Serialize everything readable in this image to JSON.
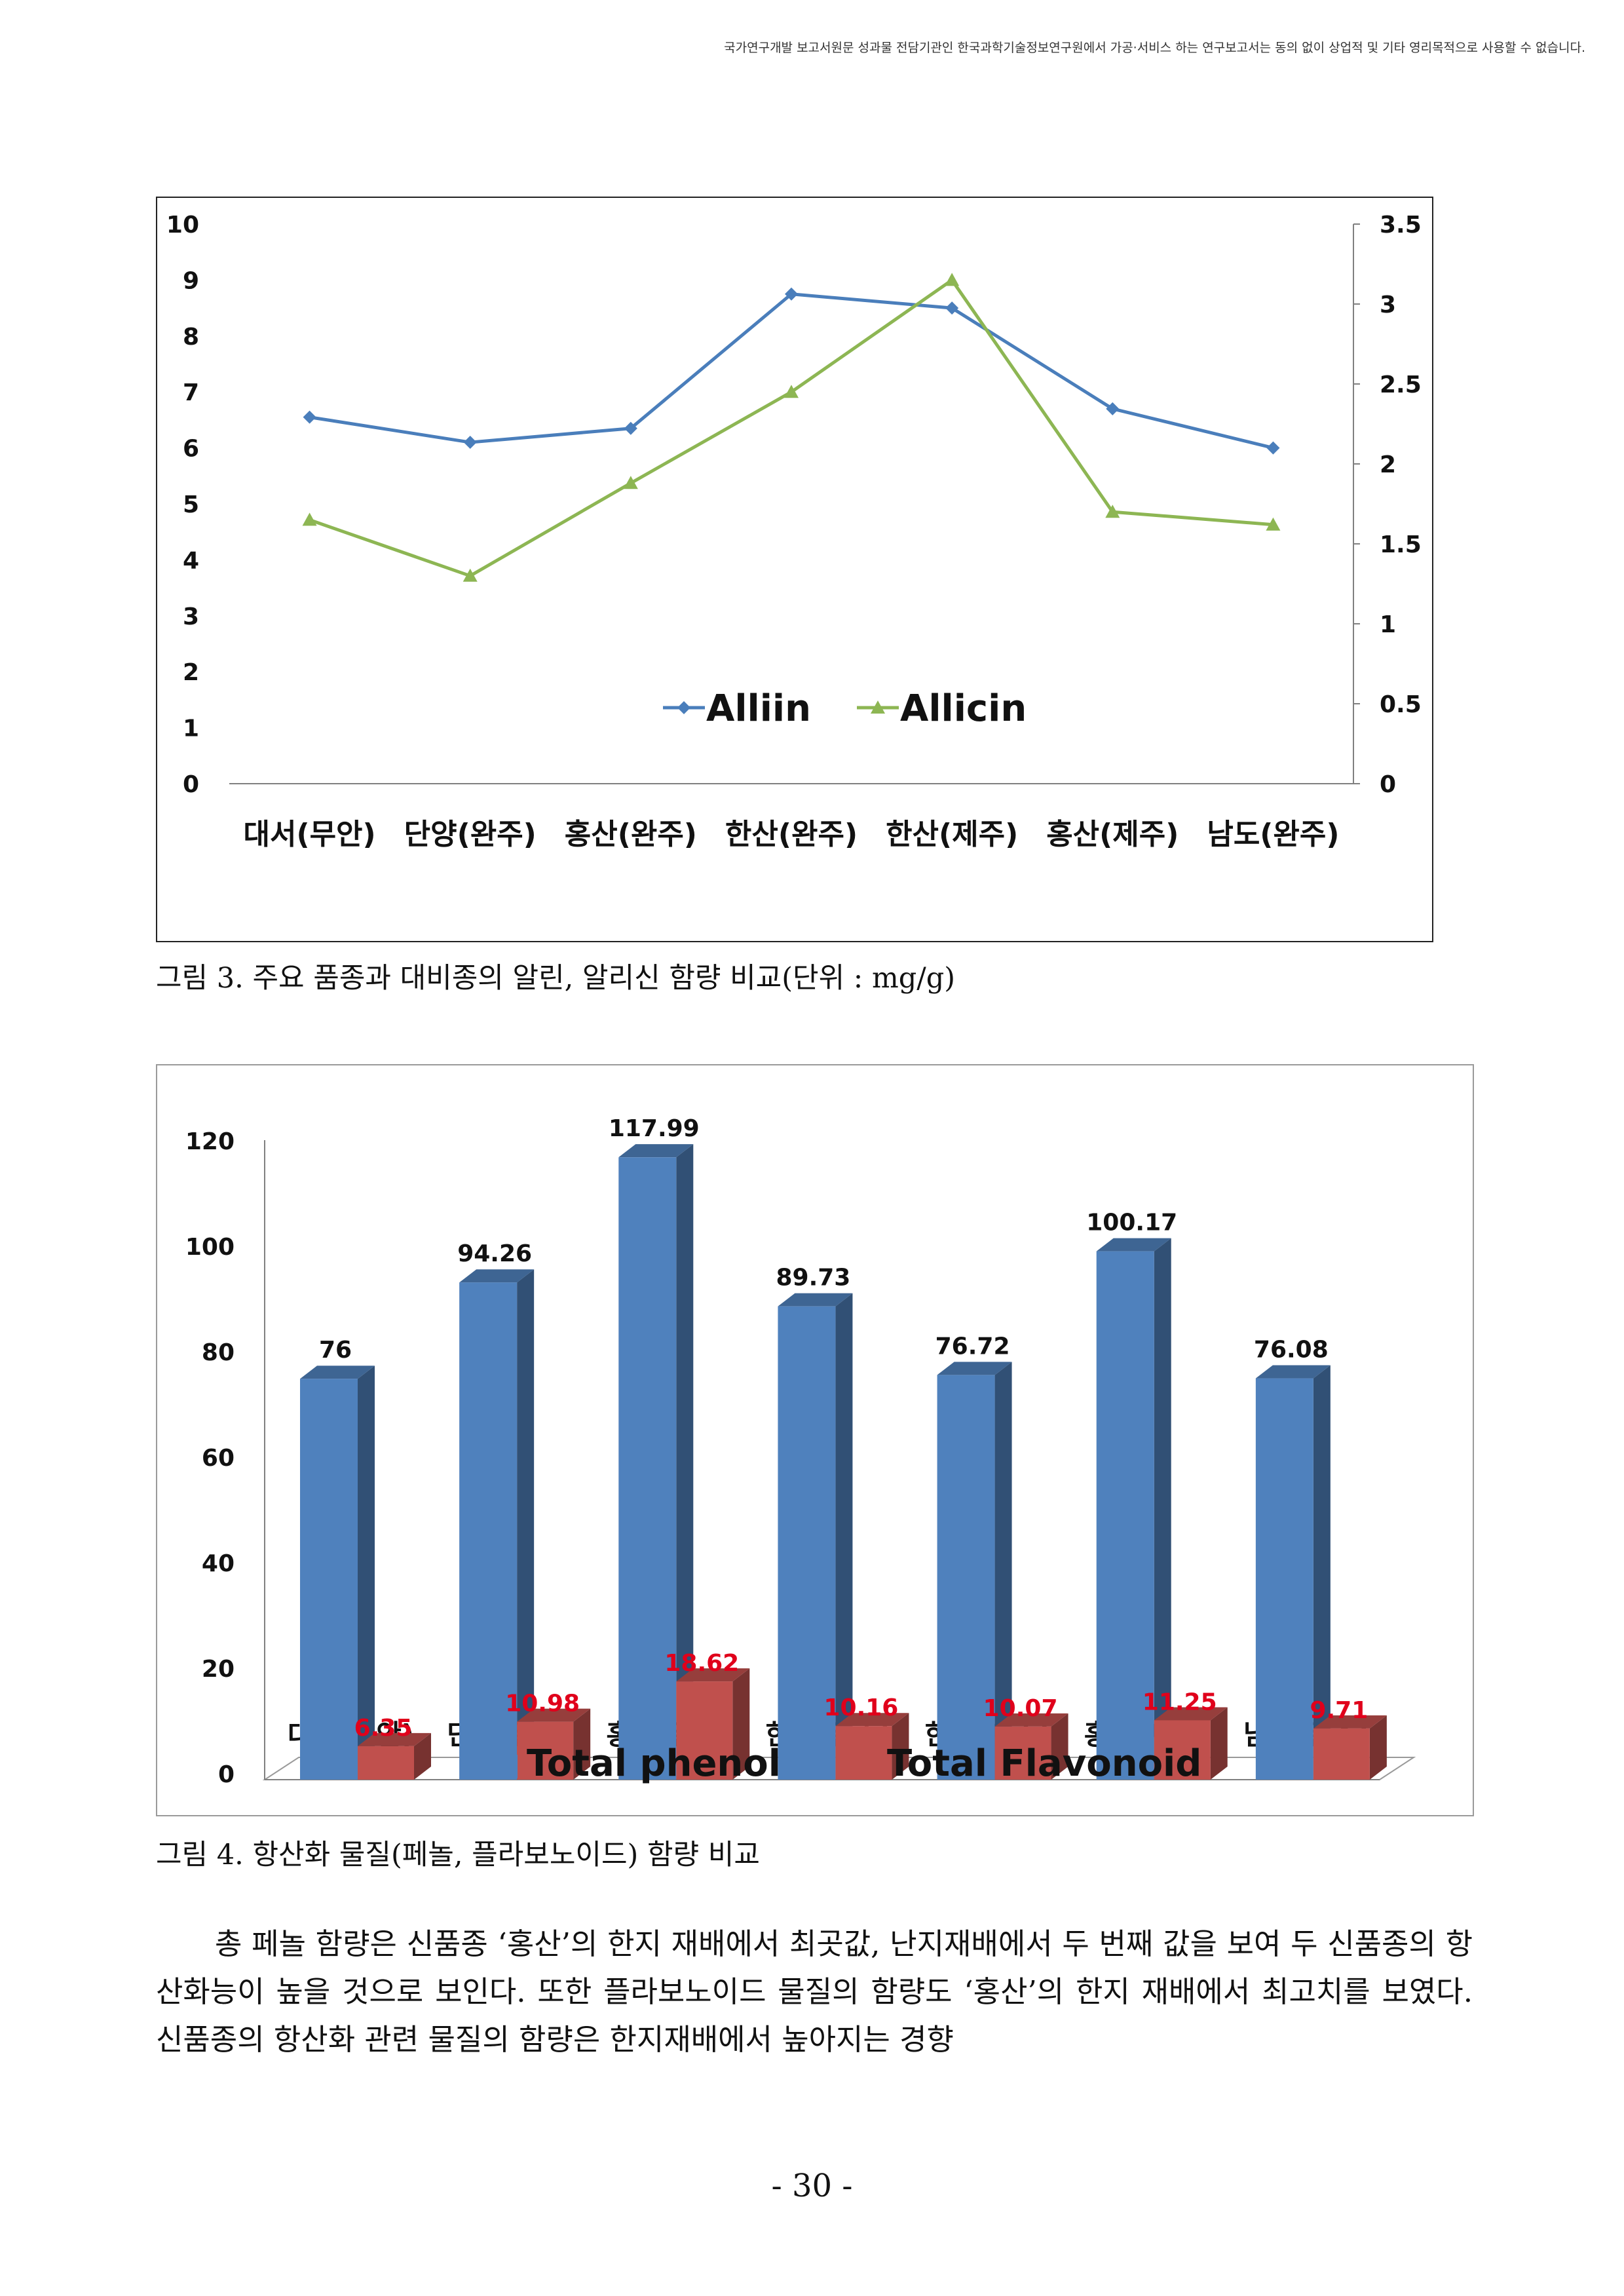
{
  "header": {
    "note": "국가연구개발 보고서원문 성과물 전담기관인 한국과학기술정보연구원에서 가공·서비스 하는 연구보고서는 동의 없이 상업적 및 기타 영리목적으로 사용할 수 없습니다."
  },
  "figures": [
    {
      "caption": "그림 3. 주요 품종과 대비종의 알린, 알리신 함량 비교(단위 : mg/g)"
    },
    {
      "caption": "그림 4. 항산화 물질(페놀, 플라보노이드) 함량 비교"
    }
  ],
  "body": {
    "paragraph": "총 페놀 함량은 신품종 ‘홍산’의 한지 재배에서 최곳값, 난지재배에서 두 번째 값을 보여 두 신품종의 항산화능이 높을 것으로 보인다. 또한 플라보노이드 물질의 함량도 ‘홍산’의 한지 재배에서 최고치를 보였다. 신품종의 항산화 관련 물질의 함량은 한지재배에서 높아지는 경향"
  },
  "footer": {
    "page_number": "- 30 -"
  },
  "chart_data": [
    {
      "type": "line",
      "title": "",
      "categories": [
        "대서(무안)",
        "단양(완주)",
        "홍산(완주)",
        "한산(완주)",
        "한산(제주)",
        "홍산(제주)",
        "남도(완주)"
      ],
      "y_left": {
        "range": [
          0,
          10
        ],
        "ticks": [
          "0",
          "1",
          "2",
          "3",
          "4",
          "5",
          "6",
          "7",
          "8",
          "9",
          "10"
        ]
      },
      "y_right": {
        "range": [
          0,
          3.5
        ],
        "ticks": [
          "0",
          "0.5",
          "1",
          "1.5",
          "2",
          "2.5",
          "3",
          "3.5"
        ]
      },
      "series": [
        {
          "name": "Alliin",
          "axis": "left",
          "color": "#4a7ebb",
          "marker": "diamond",
          "values": [
            6.55,
            6.1,
            6.35,
            8.75,
            8.5,
            6.7,
            6.0
          ]
        },
        {
          "name": "Allicin",
          "axis": "right",
          "color": "#8db653",
          "marker": "triangle",
          "values": [
            1.65,
            1.3,
            1.88,
            2.45,
            3.15,
            1.7,
            1.62
          ]
        }
      ],
      "legend": "inside-bottom-center",
      "grid": false
    },
    {
      "type": "bar",
      "title": "",
      "categories": [
        "대서(무안)",
        "단양(완주)",
        "홍산(완주)",
        "한산(완주)",
        "한산(제주)",
        "홍산(제주)",
        "남도(완주)"
      ],
      "y_range": [
        0,
        120
      ],
      "y_ticks": [
        "0",
        "20",
        "40",
        "60",
        "80",
        "100",
        "120"
      ],
      "series": [
        {
          "name": "Total phenol",
          "color": "#4f81bd",
          "values": [
            76,
            94.26,
            117.99,
            89.73,
            76.72,
            100.17,
            76.08
          ],
          "labels": [
            "76",
            "94.26",
            "117.99",
            "89.73",
            "76.72",
            "100.17",
            "76.08"
          ],
          "label_color": "#111111"
        },
        {
          "name": "Total Flavonoid",
          "color": "#c0504d",
          "values": [
            6.35,
            10.98,
            18.62,
            10.16,
            10.07,
            11.25,
            9.71
          ],
          "labels": [
            "6.35",
            "10.98",
            "18.62",
            "10.16",
            "10.07",
            "11.25",
            "9.71"
          ],
          "label_color": "#e0001b"
        }
      ],
      "legend": "bottom",
      "style": "3d"
    }
  ]
}
